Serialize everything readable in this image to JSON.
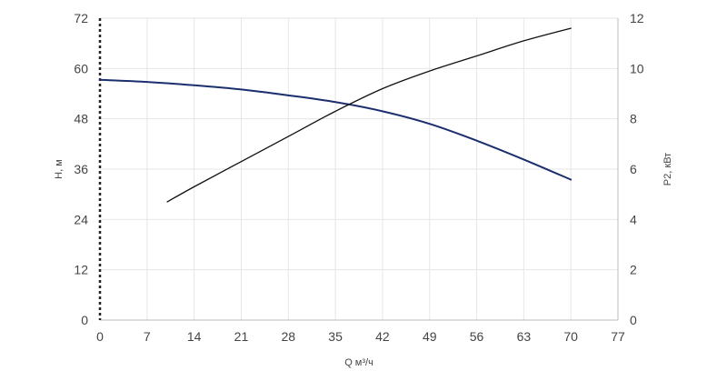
{
  "chart_data": {
    "type": "line",
    "xlabel": "Q м³/ч",
    "ylabel_left": "H, м",
    "ylabel_right": "P2, кВт",
    "x_ticks": [
      0,
      7,
      14,
      21,
      28,
      35,
      42,
      49,
      56,
      63,
      70,
      77
    ],
    "y_left_ticks": [
      0,
      12,
      24,
      36,
      48,
      60,
      72
    ],
    "y_right_ticks": [
      0,
      2,
      4,
      6,
      8,
      10,
      12
    ],
    "xlim": [
      0,
      77
    ],
    "ylim_left": [
      0,
      72
    ],
    "ylim_right": [
      0,
      12
    ],
    "grid": true,
    "series": [
      {
        "axis": "left",
        "color": "#1b2e6e",
        "x": [
          0,
          7,
          14,
          21,
          28,
          35,
          42,
          49,
          56,
          63,
          70
        ],
        "y": [
          57.3,
          56.8,
          56.0,
          55.0,
          53.6,
          52.0,
          49.8,
          46.8,
          42.8,
          38.3,
          33.5
        ]
      },
      {
        "axis": "right",
        "color": "#111111",
        "x": [
          10,
          14,
          21,
          28,
          35,
          42,
          49,
          56,
          63,
          70
        ],
        "y": [
          4.7,
          5.3,
          6.3,
          7.3,
          8.3,
          9.2,
          9.9,
          10.5,
          11.1,
          11.6
        ]
      }
    ]
  }
}
